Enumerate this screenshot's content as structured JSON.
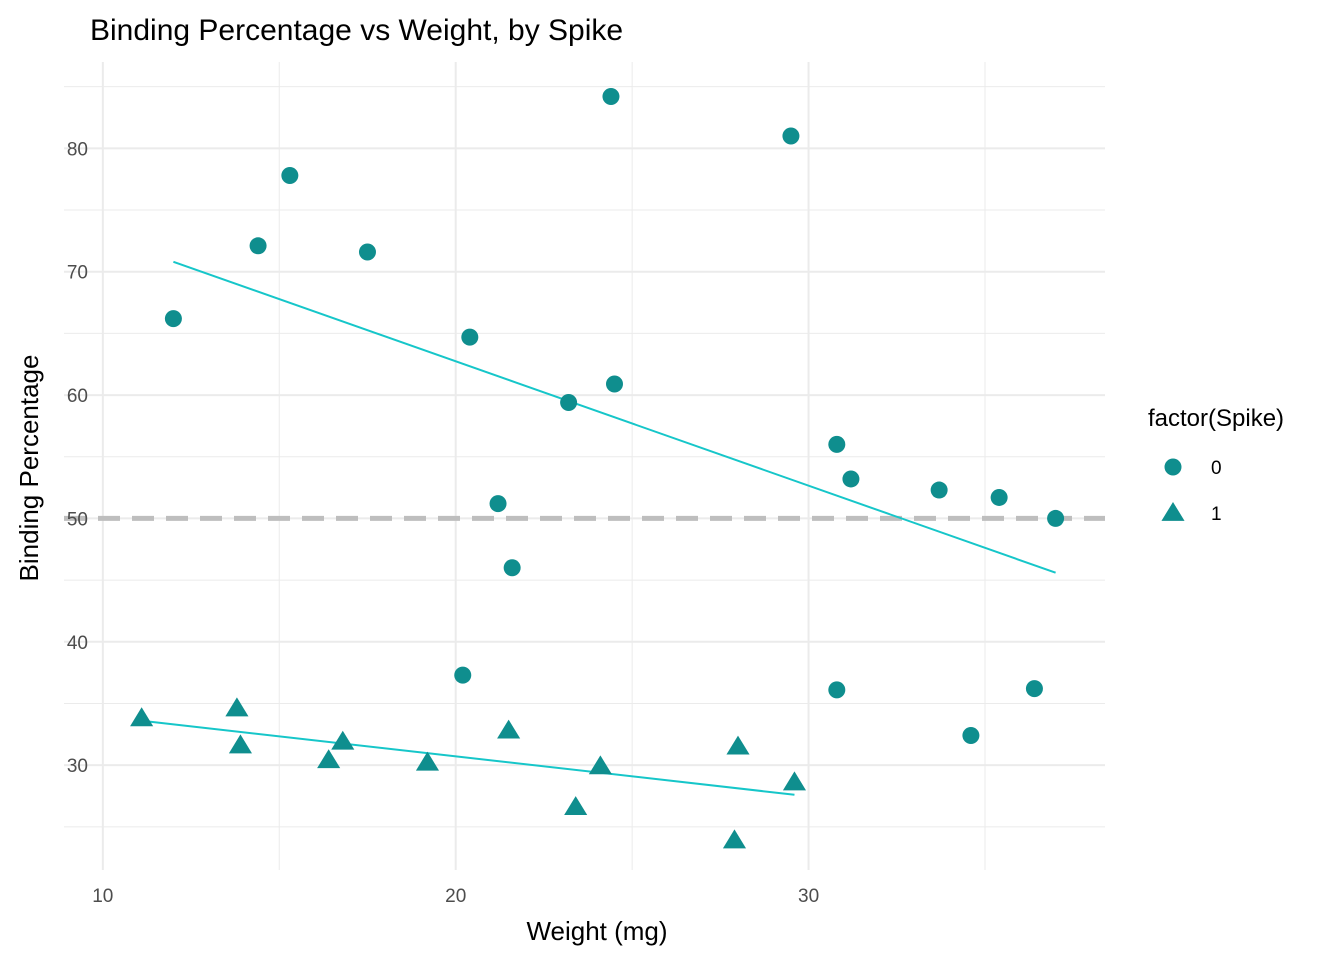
{
  "chart_data": {
    "type": "scatter",
    "title": "Binding Percentage vs Weight, by Spike",
    "xlabel": "Weight (mg)",
    "ylabel": "Binding Percentage",
    "xlim": [
      8.9,
      38.4
    ],
    "ylim": [
      21.5,
      87.0
    ],
    "x_ticks": [
      10,
      20,
      30
    ],
    "y_ticks": [
      30,
      40,
      50,
      60,
      70,
      80
    ],
    "grid": true,
    "legend": {
      "title": "factor(Spike)",
      "position": "right",
      "entries": [
        {
          "label": "0",
          "shape": "circle"
        },
        {
          "label": "1",
          "shape": "triangle"
        }
      ]
    },
    "reference_line": {
      "y": 50,
      "style": "dashed",
      "color": "#bebebe"
    },
    "colors": {
      "points": "#0f8e8e",
      "fit": "#16c6c9",
      "grid": "#ebebeb"
    },
    "series": [
      {
        "name": "0",
        "shape": "circle",
        "points": [
          [
            12.0,
            66.2
          ],
          [
            14.4,
            72.1
          ],
          [
            15.3,
            77.8
          ],
          [
            17.5,
            71.6
          ],
          [
            20.4,
            64.7
          ],
          [
            21.2,
            51.2
          ],
          [
            21.6,
            46.0
          ],
          [
            23.2,
            59.4
          ],
          [
            24.4,
            84.2
          ],
          [
            24.5,
            60.9
          ],
          [
            29.5,
            81.0
          ],
          [
            30.8,
            56.0
          ],
          [
            31.2,
            53.2
          ],
          [
            33.7,
            52.3
          ],
          [
            35.4,
            51.7
          ],
          [
            37.0,
            50.0
          ],
          [
            20.2,
            37.3
          ],
          [
            30.8,
            36.1
          ],
          [
            34.6,
            32.4
          ],
          [
            36.4,
            36.2
          ]
        ],
        "fit": [
          [
            12.0,
            70.8
          ],
          [
            37.0,
            45.6
          ]
        ]
      },
      {
        "name": "1",
        "shape": "triangle",
        "points": [
          [
            11.1,
            33.8
          ],
          [
            13.8,
            34.6
          ],
          [
            13.9,
            31.6
          ],
          [
            16.4,
            30.4
          ],
          [
            16.8,
            31.9
          ],
          [
            19.2,
            30.2
          ],
          [
            21.5,
            32.8
          ],
          [
            23.4,
            26.6
          ],
          [
            24.1,
            29.9
          ],
          [
            27.9,
            23.9
          ],
          [
            28.0,
            31.5
          ],
          [
            29.6,
            28.6
          ]
        ],
        "fit": [
          [
            11.1,
            33.6
          ],
          [
            29.6,
            27.6
          ]
        ]
      }
    ]
  }
}
